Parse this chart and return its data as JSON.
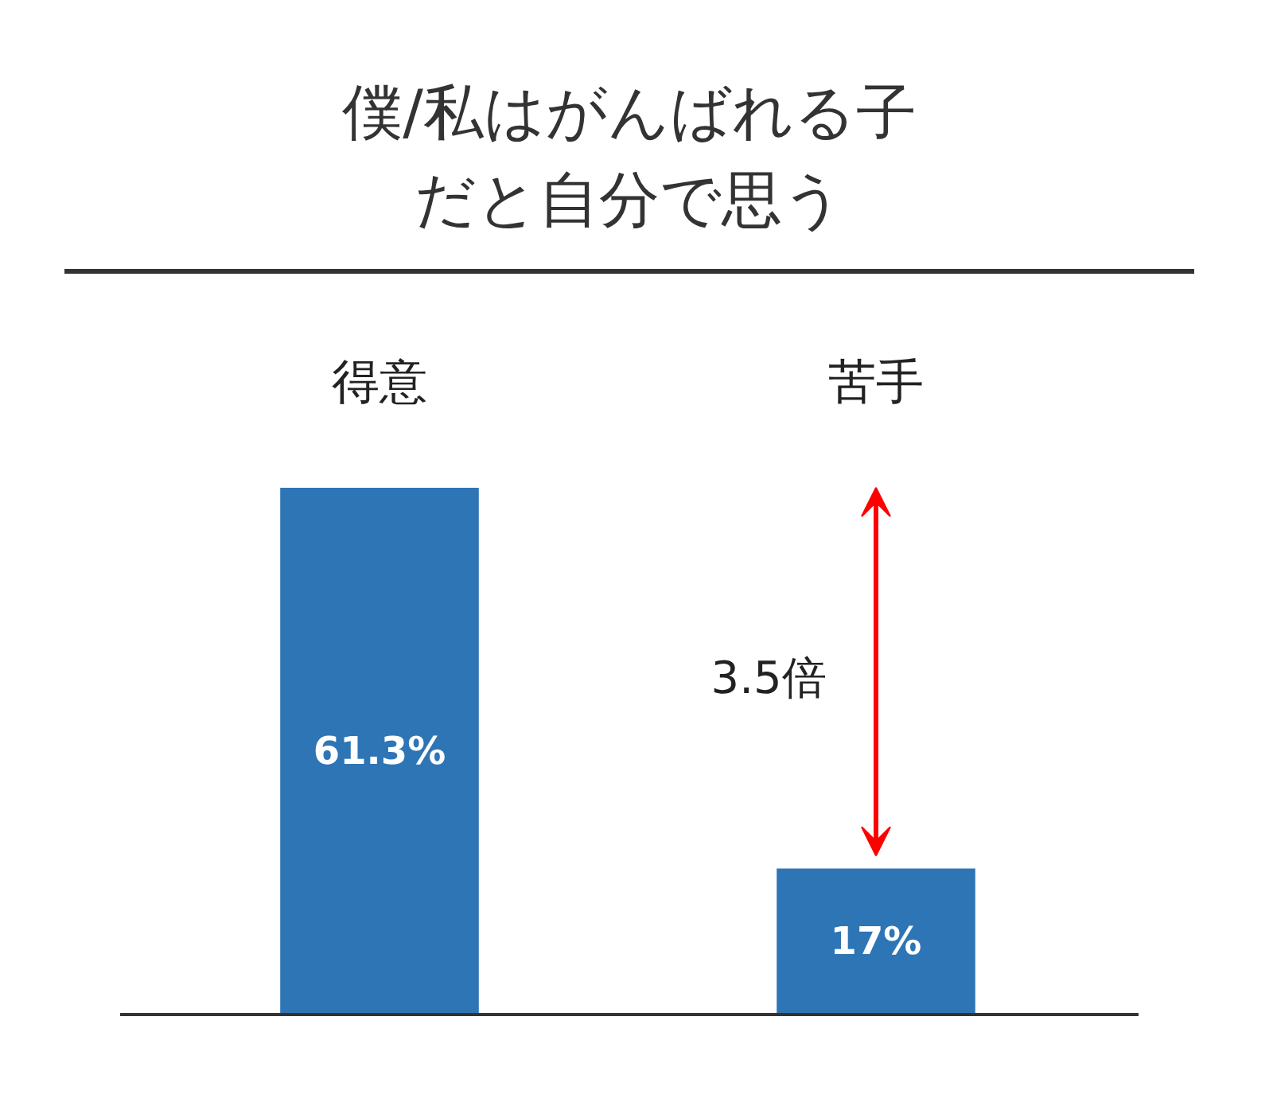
{
  "chart_data": {
    "type": "bar",
    "title": "僕/私はがんばれる子だと自分で思う",
    "categories": [
      "得意",
      "苦手"
    ],
    "values": [
      61.3,
      17
    ],
    "value_labels": [
      "61.3%",
      "17%"
    ],
    "color": "#2e75b6",
    "annotations": [
      "3.5倍"
    ],
    "grid": false
  }
}
